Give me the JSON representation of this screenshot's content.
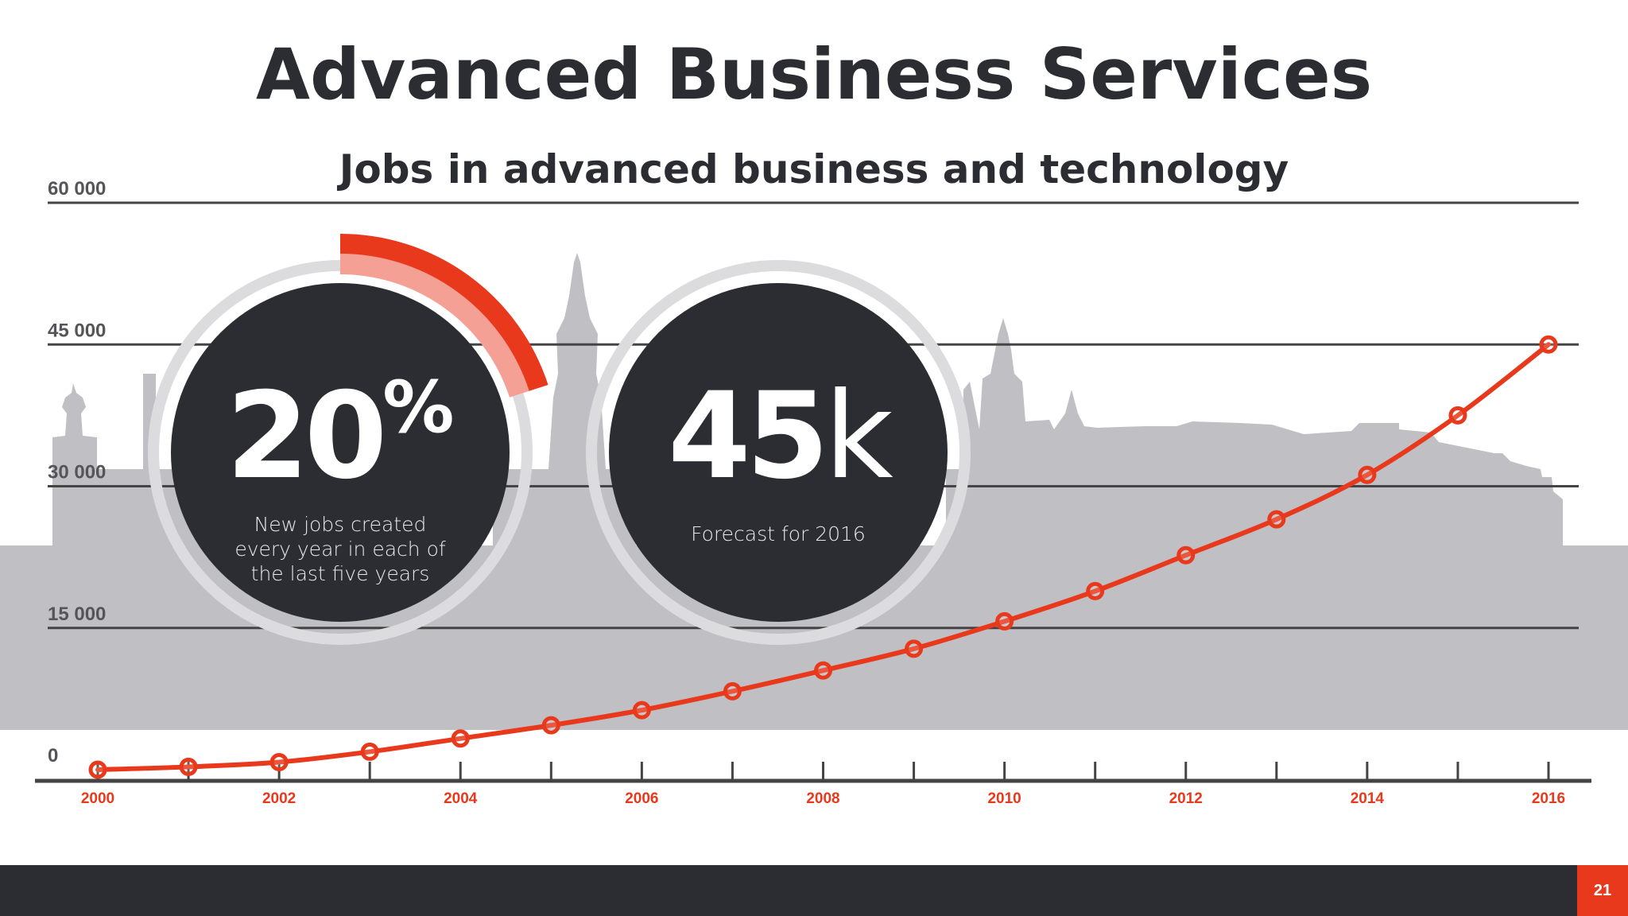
{
  "slide": {
    "title": "Advanced Business Services",
    "subtitle": "Jobs in advanced business and technology",
    "page_number": "21"
  },
  "stats": [
    {
      "value": "20",
      "suffix": "%",
      "percent": 20,
      "caption": "New jobs created every year in each of the last five years"
    },
    {
      "value": "45",
      "suffix": "k",
      "caption": "Forecast for 2016"
    }
  ],
  "colors": {
    "accent": "#e8391c",
    "accent_light": "#f5a095",
    "dark": "#2b2d33",
    "skyline": "#c0bfc3",
    "axis": "#444444"
  },
  "chart_data": {
    "type": "line",
    "x": [
      2000,
      2001,
      2002,
      2003,
      2004,
      2005,
      2006,
      2007,
      2008,
      2009,
      2010,
      2011,
      2012,
      2013,
      2014,
      2015,
      2016
    ],
    "x_tick_labels": [
      "2000",
      "2002",
      "2004",
      "2006",
      "2008",
      "2010",
      "2012",
      "2014",
      "2016"
    ],
    "series": [
      {
        "values": [
          0,
          300,
          800,
          1900,
          3300,
          4700,
          6300,
          8300,
          10500,
          12800,
          15700,
          18900,
          22700,
          26500,
          31200,
          37500,
          45000
        ]
      }
    ],
    "y_ticks": [
      0,
      15000,
      30000,
      45000,
      60000
    ],
    "y_tick_labels": [
      "0",
      "15 000",
      "30 000",
      "45 000",
      "60 000"
    ],
    "ylim": [
      0,
      60000
    ],
    "xlim": [
      2000,
      2016
    ],
    "grid": true
  }
}
